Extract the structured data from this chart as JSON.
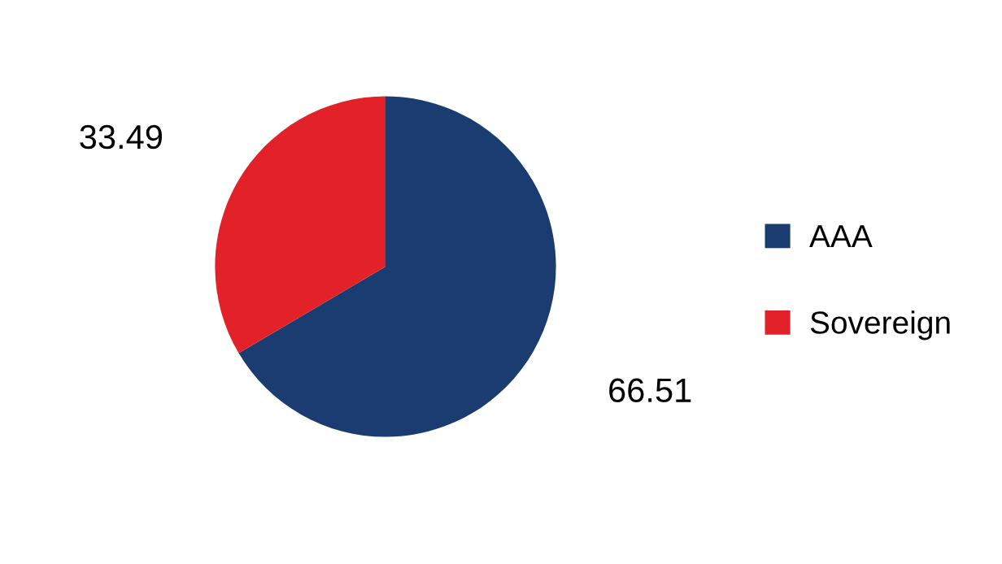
{
  "chart_data": {
    "type": "pie",
    "categories": [
      "AAA",
      "Sovereign"
    ],
    "values": [
      66.51,
      33.49
    ],
    "colors": [
      "#1b3c70",
      "#e22128"
    ],
    "data_labels": true,
    "legend": "right"
  }
}
